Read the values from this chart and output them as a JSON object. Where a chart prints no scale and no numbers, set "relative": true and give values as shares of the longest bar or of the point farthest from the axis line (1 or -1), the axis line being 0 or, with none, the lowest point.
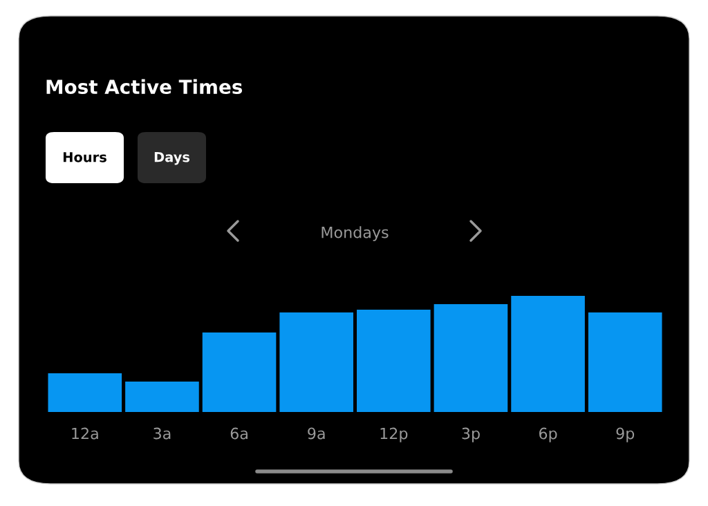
{
  "chart_data": {
    "type": "bar",
    "title": "Most Active Times",
    "subtitle": "Mondays",
    "annotations": [
      "Hours",
      "Days"
    ],
    "categories": [
      "12a",
      "3a",
      "6a",
      "9a",
      "12p",
      "3p",
      "6p",
      "9p"
    ],
    "values": [
      0.333,
      0.262,
      0.685,
      0.857,
      0.881,
      0.929,
      1.0,
      0.857
    ],
    "color": "#0796f2",
    "relative": true,
    "grid": false,
    "legend": false
  }
}
